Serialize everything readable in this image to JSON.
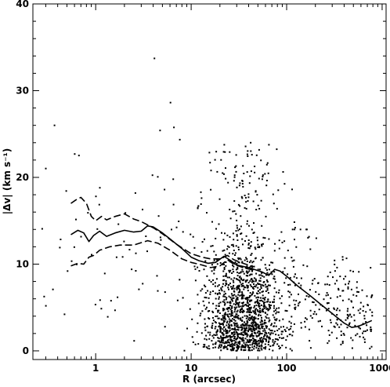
{
  "chart_data": {
    "type": "scatter",
    "title": "",
    "xlabel": "R (arcsec)",
    "ylabel": "|Δv| (km s⁻¹)",
    "xscale": "log",
    "xlim": [
      0.22,
      1100
    ],
    "ylim": [
      -1,
      40
    ],
    "xticks": [
      {
        "value": 1,
        "label": "1"
      },
      {
        "value": 10,
        "label": "10"
      },
      {
        "value": 100,
        "label": "100"
      },
      {
        "value": 1000,
        "label": "1000"
      }
    ],
    "yticks": [
      {
        "value": 0,
        "label": "0"
      },
      {
        "value": 10,
        "label": "10"
      },
      {
        "value": 20,
        "label": "20"
      },
      {
        "value": 30,
        "label": "30"
      },
      {
        "value": 40,
        "label": "40"
      }
    ],
    "grid": false,
    "legend": "none",
    "series": [
      {
        "kind": "line",
        "style": "solid",
        "points": [
          [
            0.55,
            13.4
          ],
          [
            0.65,
            13.9
          ],
          [
            0.75,
            13.6
          ],
          [
            0.85,
            12.6
          ],
          [
            0.95,
            13.3
          ],
          [
            1.1,
            13.8
          ],
          [
            1.3,
            13.2
          ],
          [
            1.6,
            13.6
          ],
          [
            2.0,
            13.9
          ],
          [
            2.5,
            13.7
          ],
          [
            3.0,
            13.8
          ],
          [
            3.5,
            14.4
          ],
          [
            4.0,
            14.3
          ],
          [
            5.0,
            13.6
          ],
          [
            6.0,
            12.9
          ],
          [
            8.0,
            11.8
          ],
          [
            10,
            10.8
          ],
          [
            12,
            10.4
          ],
          [
            15,
            10.1
          ],
          [
            18,
            10.2
          ],
          [
            22,
            10.9
          ],
          [
            26,
            10.4
          ],
          [
            30,
            9.9
          ],
          [
            40,
            9.6
          ],
          [
            55,
            9.1
          ],
          [
            65,
            8.7
          ],
          [
            75,
            9.4
          ],
          [
            85,
            9.2
          ],
          [
            100,
            8.6
          ],
          [
            130,
            7.5
          ],
          [
            170,
            6.5
          ],
          [
            220,
            5.5
          ],
          [
            300,
            4.3
          ],
          [
            400,
            3.2
          ],
          [
            480,
            2.7
          ],
          [
            550,
            2.8
          ],
          [
            650,
            3.1
          ],
          [
            780,
            3.5
          ]
        ]
      },
      {
        "kind": "line",
        "style": "dashed",
        "points": [
          [
            0.55,
            17.0
          ],
          [
            0.62,
            17.4
          ],
          [
            0.7,
            17.7
          ],
          [
            0.8,
            17.0
          ],
          [
            0.9,
            15.5
          ],
          [
            1.0,
            15.0
          ],
          [
            1.15,
            15.5
          ],
          [
            1.3,
            15.1
          ],
          [
            1.6,
            15.5
          ],
          [
            2.0,
            15.8
          ],
          [
            2.5,
            15.2
          ],
          [
            3.0,
            14.9
          ],
          [
            4.0,
            14.2
          ],
          [
            5.0,
            13.5
          ],
          [
            7.0,
            12.3
          ],
          [
            10,
            11.2
          ],
          [
            13,
            10.8
          ],
          [
            16,
            10.6
          ],
          [
            20,
            10.6
          ],
          [
            24,
            11.0
          ],
          [
            28,
            10.5
          ],
          [
            35,
            10.1
          ],
          [
            45,
            9.7
          ]
        ]
      },
      {
        "kind": "line",
        "style": "dashed",
        "points": [
          [
            0.55,
            9.8
          ],
          [
            0.65,
            10.1
          ],
          [
            0.75,
            10.0
          ],
          [
            0.85,
            10.8
          ],
          [
            0.95,
            11.0
          ],
          [
            1.1,
            11.6
          ],
          [
            1.4,
            12.0
          ],
          [
            1.8,
            12.2
          ],
          [
            2.5,
            12.2
          ],
          [
            3.5,
            12.7
          ],
          [
            4.5,
            12.4
          ],
          [
            6.0,
            11.6
          ],
          [
            8.0,
            10.6
          ],
          [
            10,
            10.2
          ],
          [
            13,
            9.9
          ],
          [
            16,
            9.6
          ],
          [
            20,
            9.8
          ],
          [
            24,
            10.5
          ],
          [
            28,
            10.0
          ],
          [
            35,
            9.6
          ],
          [
            45,
            9.3
          ]
        ]
      }
    ]
  }
}
